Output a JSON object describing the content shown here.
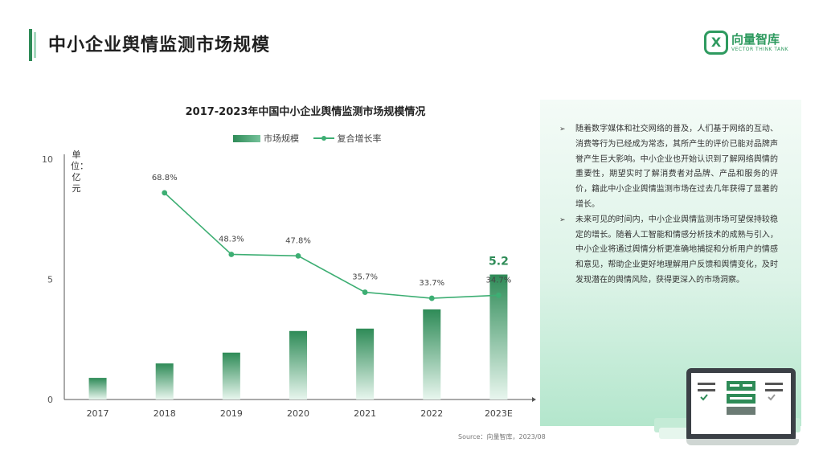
{
  "page": {
    "title": "中小企业舆情监测市场规模",
    "brand_name": "向量智库",
    "brand_sub": "VECTOR THINK TANK",
    "source": "Source：向量智库，2023/08"
  },
  "chart_data": {
    "type": "bar+line",
    "title": "2017-2023年中国中小企业舆情监测市场规模情况",
    "categories": [
      "2017",
      "2018",
      "2019",
      "2020",
      "2021",
      "2022",
      "2023E"
    ],
    "series": [
      {
        "name": "市场规模",
        "type": "bar",
        "axis": "left",
        "unit": "亿元",
        "values": [
          0.9,
          1.5,
          1.95,
          2.85,
          2.95,
          3.75,
          5.2
        ],
        "labeled": [
          false,
          false,
          false,
          false,
          false,
          false,
          true
        ]
      },
      {
        "name": "复合增长率",
        "type": "line",
        "axis": "right",
        "values": [
          null,
          68.8,
          48.3,
          47.8,
          35.7,
          33.7,
          34.7
        ],
        "labels": [
          "",
          "68.8%",
          "48.3%",
          "47.8%",
          "35.7%",
          "33.7%",
          "34.7%"
        ]
      }
    ],
    "ylabel": "单位：亿元",
    "ylim": [
      0,
      10
    ],
    "yticks": [
      0,
      5,
      10
    ],
    "y2lim": [
      0,
      80
    ],
    "legend": "top-center",
    "grid": false
  },
  "panel": {
    "bullets": [
      "随着数字媒体和社交网络的普及，人们基于网络的互动、消费等行为已经成为常态，其所产生的评价已能对品牌声誉产生巨大影响。中小企业也开始认识到了解网络舆情的重要性，期望实时了解消费者对品牌、产品和服务的评价，籍此中小企业舆情监测市场在过去几年获得了显著的增长。",
      "未来可见的时间内，中小企业舆情监测市场可望保持较稳定的增长。随着人工智能和情感分析技术的成熟与引入，中小企业将通过舆情分析更准确地捕捉和分析用户的情感和意见，帮助企业更好地理解用户反馈和舆情变化，及时发现潜在的舆情风险，获得更深入的市场洞察。"
    ]
  },
  "colors": {
    "accent": "#2e8b57",
    "bar_top": "#2e8b57",
    "bar_bottom": "#e8f6ee",
    "line": "#3dae73"
  }
}
